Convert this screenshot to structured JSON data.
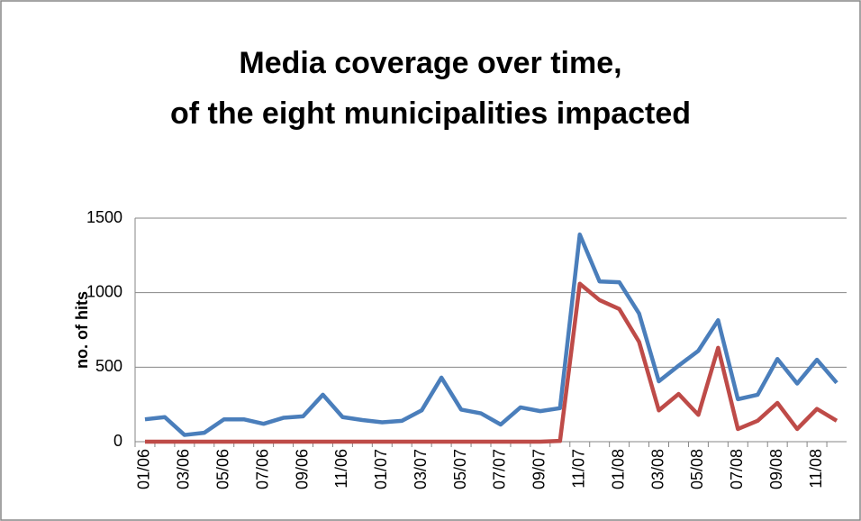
{
  "chart_data": {
    "type": "line",
    "title": [
      "Media coverage over time,",
      "of the eight municipalities impacted"
    ],
    "y_label": "no. of hits",
    "categories": [
      "01/06",
      null,
      "03/06",
      null,
      "05/06",
      null,
      "07/06",
      null,
      "09/06",
      null,
      "11/06",
      null,
      "01/07",
      null,
      "03/07",
      null,
      "05/07",
      null,
      "07/07",
      null,
      "09/07",
      null,
      "11/07",
      null,
      "01/08",
      null,
      "03/08",
      null,
      "05/08",
      null,
      "07/08",
      null,
      "09/08",
      null,
      "11/08",
      null
    ],
    "series": [
      {
        "color": "#4a7ebb",
        "values": [
          150,
          165,
          45,
          60,
          150,
          150,
          120,
          160,
          170,
          315,
          165,
          145,
          130,
          140,
          210,
          430,
          215,
          190,
          115,
          230,
          205,
          225,
          1390,
          1075,
          1070,
          860,
          405,
          510,
          610,
          815,
          285,
          315,
          555,
          390,
          550,
          395
        ]
      },
      {
        "color": "#be4b48",
        "values": [
          0,
          0,
          0,
          0,
          0,
          0,
          0,
          0,
          0,
          0,
          0,
          0,
          0,
          0,
          0,
          0,
          0,
          0,
          0,
          0,
          0,
          5,
          1060,
          950,
          890,
          670,
          210,
          320,
          180,
          630,
          85,
          140,
          260,
          85,
          220,
          140
        ]
      }
    ],
    "ylim": [
      0,
      1500
    ],
    "yticks": [
      0,
      500,
      1000,
      1500
    ],
    "grid": true
  }
}
